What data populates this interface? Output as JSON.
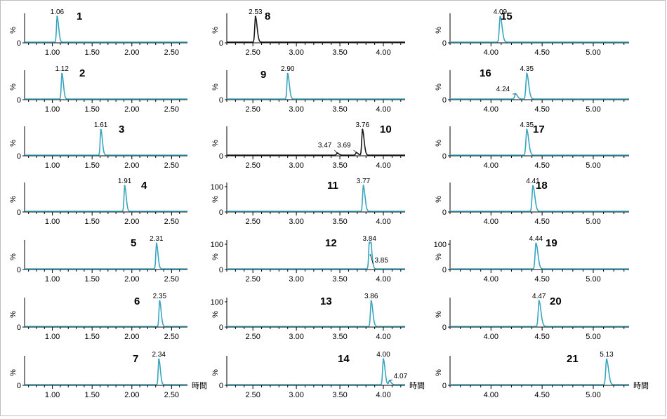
{
  "axis_unit": "時間",
  "y_label": "%",
  "colors": {
    "trace": "#3aa5c0",
    "trace_dark": "#1a1a1a",
    "baseline": "#3aa5c0"
  },
  "chart_data": [
    {
      "id": "1",
      "type": "line",
      "x_ticks": [
        "1.00",
        "1.50",
        "2.00",
        "2.50"
      ],
      "xlim": [
        0.65,
        2.7
      ],
      "y_ticks": [
        "0"
      ],
      "peaks": [
        {
          "rt": 1.06,
          "height": 1.0,
          "label": "1.06"
        }
      ],
      "color": "teal"
    },
    {
      "id": "2",
      "type": "line",
      "x_ticks": [
        "1.00",
        "1.50",
        "2.00",
        "2.50"
      ],
      "xlim": [
        0.65,
        2.7
      ],
      "y_ticks": [
        "0"
      ],
      "peaks": [
        {
          "rt": 1.12,
          "height": 1.0,
          "label": "1.12"
        }
      ],
      "color": "teal"
    },
    {
      "id": "3",
      "type": "line",
      "x_ticks": [
        "1.00",
        "1.50",
        "2.00",
        "2.50"
      ],
      "xlim": [
        0.65,
        2.7
      ],
      "y_ticks": [
        "0"
      ],
      "peaks": [
        {
          "rt": 1.61,
          "height": 1.0,
          "label": "1.61"
        }
      ],
      "color": "teal"
    },
    {
      "id": "4",
      "type": "line",
      "x_ticks": [
        "1.00",
        "1.50",
        "2.00",
        "2.50"
      ],
      "xlim": [
        0.65,
        2.7
      ],
      "y_ticks": [
        "0"
      ],
      "peaks": [
        {
          "rt": 1.91,
          "height": 1.0,
          "label": "1.91"
        }
      ],
      "color": "teal"
    },
    {
      "id": "5",
      "type": "line",
      "x_ticks": [
        "1.00",
        "1.50",
        "2.00",
        "2.50"
      ],
      "xlim": [
        0.65,
        2.7
      ],
      "y_ticks": [
        "0"
      ],
      "peaks": [
        {
          "rt": 2.31,
          "height": 1.0,
          "label": "2.31"
        }
      ],
      "color": "teal"
    },
    {
      "id": "6",
      "type": "line",
      "x_ticks": [
        "1.00",
        "1.50",
        "2.00",
        "2.50"
      ],
      "xlim": [
        0.65,
        2.7
      ],
      "y_ticks": [
        "0"
      ],
      "peaks": [
        {
          "rt": 2.35,
          "height": 1.0,
          "label": "2.35"
        }
      ],
      "color": "teal"
    },
    {
      "id": "7",
      "type": "line",
      "x_ticks": [
        "1.00",
        "1.50",
        "2.00",
        "2.50"
      ],
      "xlim": [
        0.65,
        2.7
      ],
      "y_ticks": [
        "0"
      ],
      "peaks": [
        {
          "rt": 2.34,
          "height": 1.0,
          "label": "2.34"
        }
      ],
      "color": "teal",
      "show_unit": true
    },
    {
      "id": "8",
      "type": "line",
      "x_ticks": [
        "2.50",
        "3.00",
        "3.50",
        "4.00"
      ],
      "xlim": [
        2.2,
        4.25
      ],
      "y_ticks": [
        "0"
      ],
      "peaks": [
        {
          "rt": 2.53,
          "height": 1.0,
          "label": "2.53"
        }
      ],
      "color": "dark"
    },
    {
      "id": "9",
      "type": "line",
      "x_ticks": [
        "2.50",
        "3.00",
        "3.50",
        "4.00"
      ],
      "xlim": [
        2.2,
        4.25
      ],
      "y_ticks": [
        "0"
      ],
      "peaks": [
        {
          "rt": 2.9,
          "height": 1.0,
          "label": "2.90"
        }
      ],
      "color": "teal"
    },
    {
      "id": "10",
      "type": "line",
      "x_ticks": [
        "2.50",
        "3.00",
        "3.50",
        "4.00"
      ],
      "xlim": [
        2.2,
        4.25
      ],
      "y_ticks": [
        "0"
      ],
      "peaks": [
        {
          "rt": 3.47,
          "height": 0.08,
          "label": "3.47"
        },
        {
          "rt": 3.69,
          "height": 0.1,
          "label": "3.69"
        },
        {
          "rt": 3.76,
          "height": 1.0,
          "label": "3.76"
        }
      ],
      "color": "dark"
    },
    {
      "id": "11",
      "type": "line",
      "x_ticks": [
        "2.50",
        "3.00",
        "3.50",
        "4.00"
      ],
      "xlim": [
        2.2,
        4.25
      ],
      "y_ticks": [
        "0",
        "100"
      ],
      "peaks": [
        {
          "rt": 3.77,
          "height": 1.0,
          "label": "3.77"
        }
      ],
      "color": "teal"
    },
    {
      "id": "12",
      "type": "line",
      "x_ticks": [
        "2.50",
        "3.00",
        "3.50",
        "4.00"
      ],
      "xlim": [
        2.2,
        4.25
      ],
      "y_ticks": [
        "0",
        "100"
      ],
      "peaks": [
        {
          "rt": 3.84,
          "height": 1.0,
          "label": "3.84"
        },
        {
          "rt": 3.85,
          "height": 0.55,
          "label": "3.85"
        }
      ],
      "color": "teal"
    },
    {
      "id": "13",
      "type": "line",
      "x_ticks": [
        "2.50",
        "3.00",
        "3.50",
        "4.00"
      ],
      "xlim": [
        2.2,
        4.25
      ],
      "y_ticks": [
        "0",
        "100"
      ],
      "peaks": [
        {
          "rt": 3.86,
          "height": 1.0,
          "label": "3.86"
        }
      ],
      "color": "teal"
    },
    {
      "id": "14",
      "type": "line",
      "x_ticks": [
        "2.50",
        "3.00",
        "3.50",
        "4.00"
      ],
      "xlim": [
        2.2,
        4.25
      ],
      "y_ticks": [
        "0"
      ],
      "peaks": [
        {
          "rt": 4.0,
          "height": 1.0,
          "label": "4.00"
        },
        {
          "rt": 4.07,
          "height": 0.15,
          "label": "4.07"
        }
      ],
      "color": "teal",
      "show_unit": true
    },
    {
      "id": "15",
      "type": "line",
      "x_ticks": [
        "4.00",
        "4.50",
        "5.00"
      ],
      "xlim": [
        3.6,
        5.35
      ],
      "y_ticks": [
        "0"
      ],
      "peaks": [
        {
          "rt": 4.09,
          "height": 1.0,
          "label": "4.09"
        }
      ],
      "color": "teal"
    },
    {
      "id": "16",
      "type": "line",
      "x_ticks": [
        "4.00",
        "4.50",
        "5.00"
      ],
      "xlim": [
        3.6,
        5.35
      ],
      "y_ticks": [
        "0"
      ],
      "peaks": [
        {
          "rt": 4.24,
          "height": 0.2,
          "label": "4.24"
        },
        {
          "rt": 4.35,
          "height": 1.0,
          "label": "4.35"
        }
      ],
      "color": "teal"
    },
    {
      "id": "17",
      "type": "line",
      "x_ticks": [
        "4.00",
        "4.50",
        "5.00"
      ],
      "xlim": [
        3.6,
        5.35
      ],
      "y_ticks": [
        "0"
      ],
      "peaks": [
        {
          "rt": 4.35,
          "height": 1.0,
          "label": "4.35"
        }
      ],
      "color": "teal"
    },
    {
      "id": "18",
      "type": "line",
      "x_ticks": [
        "4.00",
        "4.50",
        "5.00"
      ],
      "xlim": [
        3.6,
        5.35
      ],
      "y_ticks": [
        "0"
      ],
      "peaks": [
        {
          "rt": 4.41,
          "height": 1.0,
          "label": "4.41"
        }
      ],
      "color": "teal"
    },
    {
      "id": "19",
      "type": "line",
      "x_ticks": [
        "4.00",
        "4.50",
        "5.00"
      ],
      "xlim": [
        3.6,
        5.35
      ],
      "y_ticks": [
        "0",
        "100"
      ],
      "peaks": [
        {
          "rt": 4.44,
          "height": 1.0,
          "label": "4.44"
        }
      ],
      "color": "teal"
    },
    {
      "id": "20",
      "type": "line",
      "x_ticks": [
        "4.00",
        "4.50",
        "5.00"
      ],
      "xlim": [
        3.6,
        5.35
      ],
      "y_ticks": [
        "0"
      ],
      "peaks": [
        {
          "rt": 4.47,
          "height": 1.0,
          "label": "4.47"
        }
      ],
      "color": "teal"
    },
    {
      "id": "21",
      "type": "line",
      "x_ticks": [
        "4.00",
        "4.50",
        "5.00"
      ],
      "xlim": [
        3.6,
        5.35
      ],
      "y_ticks": [
        "0"
      ],
      "peaks": [
        {
          "rt": 5.13,
          "height": 1.0,
          "label": "5.13"
        }
      ],
      "color": "teal",
      "show_unit": true
    }
  ]
}
